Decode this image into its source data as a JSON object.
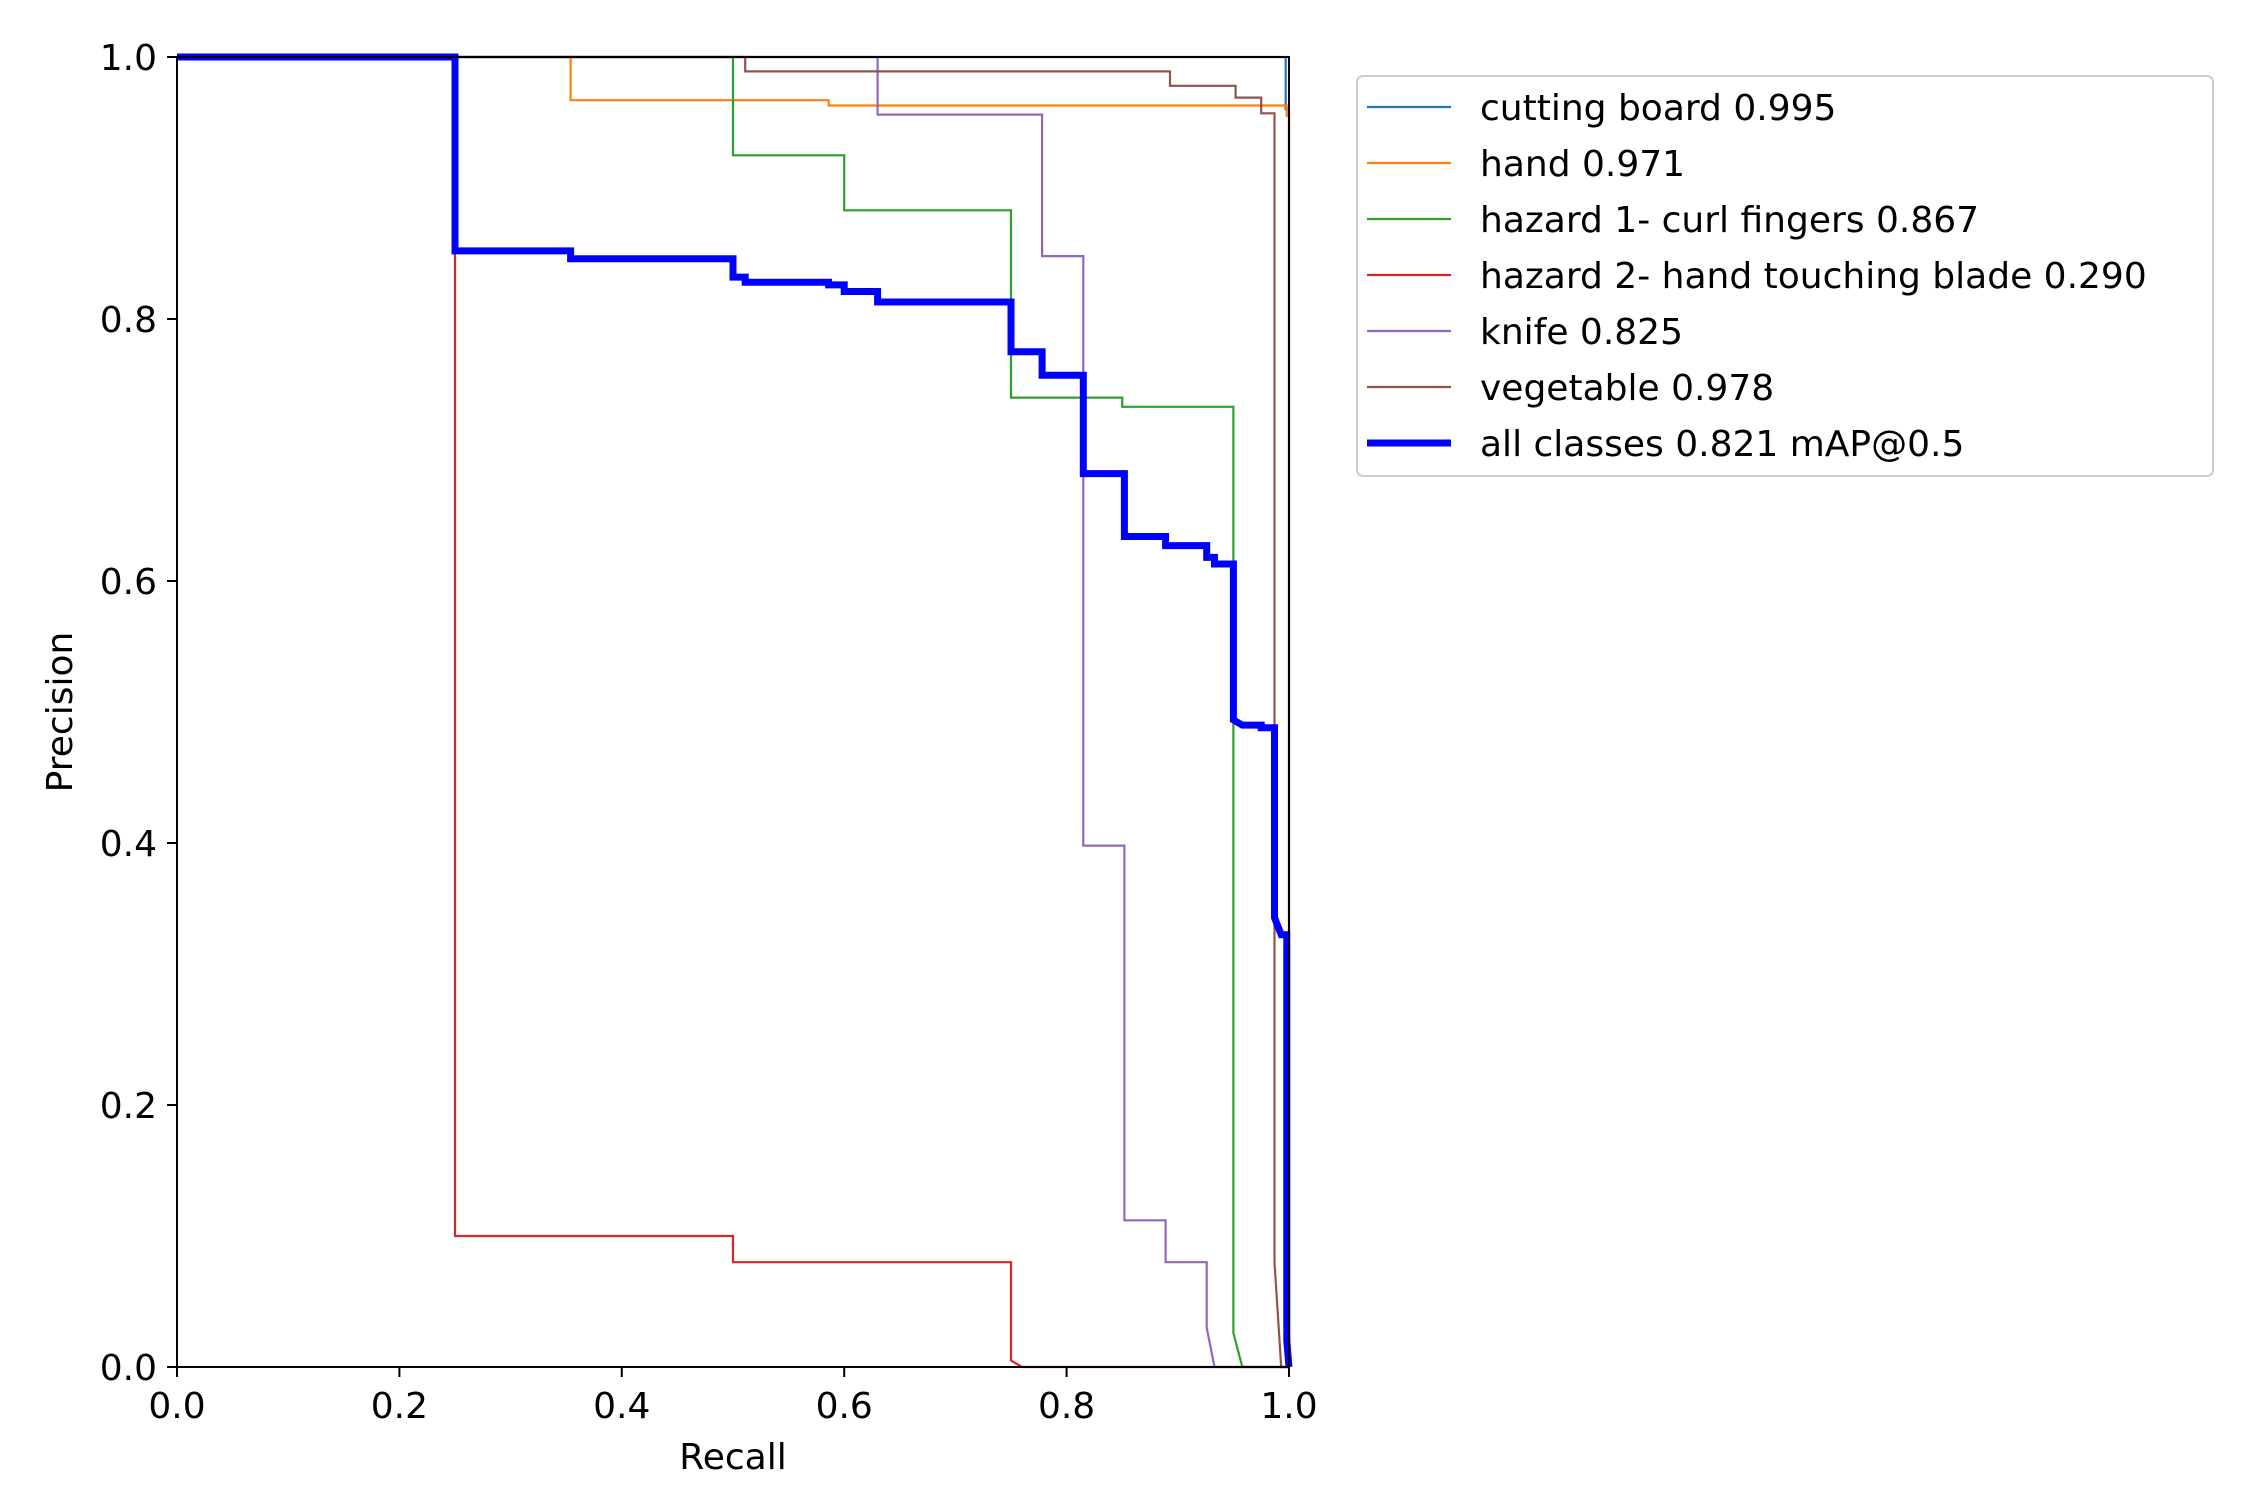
{
  "chart_data": {
    "type": "line",
    "title": "",
    "xlabel": "Recall",
    "ylabel": "Precision",
    "xlim": [
      0,
      1
    ],
    "ylim": [
      0,
      1
    ],
    "grid": false,
    "legend_position": "outside-top-right",
    "xticks": [
      "0.0",
      "0.2",
      "0.4",
      "0.6",
      "0.8",
      "1.0"
    ],
    "yticks": [
      "0.0",
      "0.2",
      "0.4",
      "0.6",
      "0.8",
      "1.0"
    ],
    "series": [
      {
        "name": "cutting board 0.995",
        "color": "#1f77b4",
        "style": "thin",
        "points": [
          [
            0,
            1
          ],
          [
            0.997,
            1
          ],
          [
            0.997,
            0.96
          ],
          [
            1,
            0.96
          ],
          [
            1,
            0
          ]
        ]
      },
      {
        "name": "hand 0.971",
        "color": "#ff7f0e",
        "style": "thin",
        "points": [
          [
            0,
            1
          ],
          [
            0.354,
            1
          ],
          [
            0.354,
            0.967
          ],
          [
            0.586,
            0.967
          ],
          [
            0.586,
            0.963
          ],
          [
            0.998,
            0.963
          ],
          [
            0.998,
            0.955
          ],
          [
            1,
            0.955
          ],
          [
            1,
            0
          ]
        ]
      },
      {
        "name": "hazard 1- curl fingers 0.867",
        "color": "#2ca02c",
        "style": "thin",
        "points": [
          [
            0,
            1
          ],
          [
            0.5,
            1
          ],
          [
            0.5,
            0.925
          ],
          [
            0.6,
            0.925
          ],
          [
            0.6,
            0.883
          ],
          [
            0.75,
            0.883
          ],
          [
            0.75,
            0.74
          ],
          [
            0.85,
            0.74
          ],
          [
            0.85,
            0.733
          ],
          [
            0.95,
            0.733
          ],
          [
            0.95,
            0.026
          ],
          [
            0.958,
            0
          ],
          [
            1,
            0
          ]
        ]
      },
      {
        "name": "hazard 2- hand touching blade 0.290",
        "color": "#d62728",
        "style": "thin",
        "points": [
          [
            0,
            1
          ],
          [
            0.25,
            1
          ],
          [
            0.25,
            0.1
          ],
          [
            0.5,
            0.1
          ],
          [
            0.5,
            0.08
          ],
          [
            0.75,
            0.08
          ],
          [
            0.75,
            0.005
          ],
          [
            0.76,
            0
          ],
          [
            1,
            0
          ]
        ]
      },
      {
        "name": "knife 0.825",
        "color": "#9467bd",
        "style": "thin",
        "points": [
          [
            0,
            1
          ],
          [
            0.63,
            1
          ],
          [
            0.63,
            0.956
          ],
          [
            0.778,
            0.956
          ],
          [
            0.778,
            0.848
          ],
          [
            0.815,
            0.848
          ],
          [
            0.815,
            0.398
          ],
          [
            0.852,
            0.398
          ],
          [
            0.852,
            0.112
          ],
          [
            0.889,
            0.112
          ],
          [
            0.889,
            0.08
          ],
          [
            0.926,
            0.08
          ],
          [
            0.926,
            0.03
          ],
          [
            0.933,
            0
          ],
          [
            1,
            0
          ]
        ]
      },
      {
        "name": "vegetable 0.978",
        "color": "#8c564b",
        "style": "thin",
        "points": [
          [
            0,
            1
          ],
          [
            0.511,
            1
          ],
          [
            0.511,
            0.989
          ],
          [
            0.893,
            0.989
          ],
          [
            0.893,
            0.978
          ],
          [
            0.952,
            0.978
          ],
          [
            0.952,
            0.969
          ],
          [
            0.975,
            0.969
          ],
          [
            0.975,
            0.957
          ],
          [
            0.987,
            0.957
          ],
          [
            0.987,
            0.08
          ],
          [
            0.993,
            0
          ],
          [
            1,
            0
          ]
        ]
      },
      {
        "name": "all classes 0.821 mAP@0.5",
        "color": "#0000ff",
        "style": "thick",
        "points": [
          [
            0,
            1
          ],
          [
            0.25,
            1
          ],
          [
            0.25,
            0.852
          ],
          [
            0.354,
            0.852
          ],
          [
            0.354,
            0.846
          ],
          [
            0.5,
            0.846
          ],
          [
            0.5,
            0.832
          ],
          [
            0.511,
            0.832
          ],
          [
            0.511,
            0.828
          ],
          [
            0.586,
            0.828
          ],
          [
            0.586,
            0.826
          ],
          [
            0.6,
            0.826
          ],
          [
            0.6,
            0.821
          ],
          [
            0.63,
            0.821
          ],
          [
            0.63,
            0.813
          ],
          [
            0.75,
            0.813
          ],
          [
            0.75,
            0.775
          ],
          [
            0.778,
            0.775
          ],
          [
            0.778,
            0.757
          ],
          [
            0.815,
            0.757
          ],
          [
            0.815,
            0.682
          ],
          [
            0.852,
            0.682
          ],
          [
            0.852,
            0.634
          ],
          [
            0.889,
            0.634
          ],
          [
            0.889,
            0.627
          ],
          [
            0.926,
            0.627
          ],
          [
            0.926,
            0.618
          ],
          [
            0.933,
            0.618
          ],
          [
            0.933,
            0.613
          ],
          [
            0.95,
            0.613
          ],
          [
            0.95,
            0.494
          ],
          [
            0.958,
            0.49
          ],
          [
            0.975,
            0.49
          ],
          [
            0.975,
            0.488
          ],
          [
            0.987,
            0.488
          ],
          [
            0.987,
            0.343
          ],
          [
            0.993,
            0.33
          ],
          [
            0.998,
            0.33
          ],
          [
            0.998,
            0.02
          ],
          [
            1,
            0
          ]
        ]
      }
    ]
  }
}
